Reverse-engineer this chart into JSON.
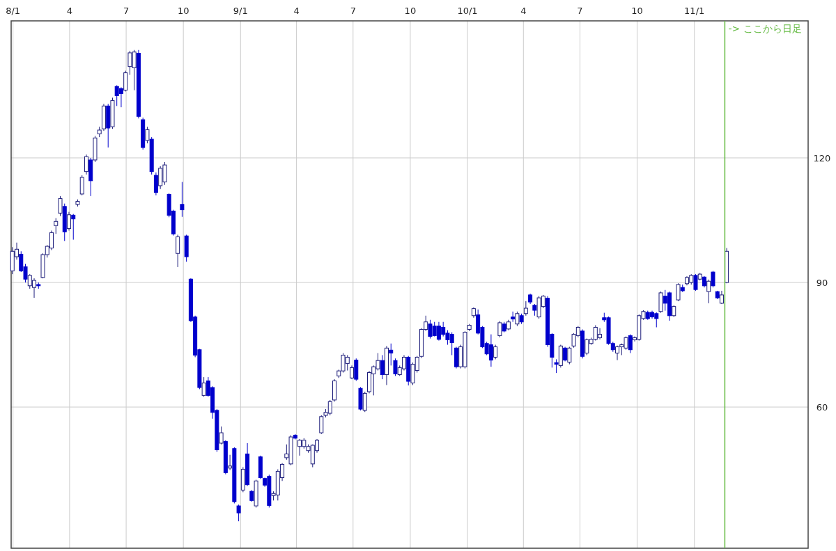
{
  "chart_data": {
    "type": "candlestick",
    "x": [
      "2007-12-31",
      "2008-01-07",
      "2008-01-14",
      "2008-01-21",
      "2008-01-28",
      "2008-02-04",
      "2008-02-11",
      "2008-02-18",
      "2008-02-25",
      "2008-03-03",
      "2008-03-10",
      "2008-03-17",
      "2008-03-24",
      "2008-03-31",
      "2008-04-07",
      "2008-04-14",
      "2008-04-21",
      "2008-04-28",
      "2008-05-05",
      "2008-05-12",
      "2008-05-19",
      "2008-05-26",
      "2008-06-02",
      "2008-06-09",
      "2008-06-16",
      "2008-06-23",
      "2008-06-30",
      "2008-07-07",
      "2008-07-14",
      "2008-07-21",
      "2008-07-28",
      "2008-08-04",
      "2008-08-11",
      "2008-08-18",
      "2008-08-25",
      "2008-09-01",
      "2008-09-08",
      "2008-09-15",
      "2008-09-22",
      "2008-09-29",
      "2008-10-06",
      "2008-10-13",
      "2008-10-20",
      "2008-10-27",
      "2008-11-03",
      "2008-11-10",
      "2008-11-17",
      "2008-11-24",
      "2008-12-01",
      "2008-12-08",
      "2008-12-15",
      "2008-12-22",
      "2008-12-29",
      "2009-01-05",
      "2009-01-12",
      "2009-01-19",
      "2009-01-26",
      "2009-02-02",
      "2009-02-09",
      "2009-02-16",
      "2009-02-23",
      "2009-03-02",
      "2009-03-09",
      "2009-03-16",
      "2009-03-23",
      "2009-03-30",
      "2009-04-06",
      "2009-04-13",
      "2009-04-20",
      "2009-04-27",
      "2009-05-04",
      "2009-05-11",
      "2009-05-18",
      "2009-05-25",
      "2009-06-01",
      "2009-06-08",
      "2009-06-15",
      "2009-06-22",
      "2009-06-29",
      "2009-07-06",
      "2009-07-13",
      "2009-07-20",
      "2009-07-27",
      "2009-08-03",
      "2009-08-10",
      "2009-08-17",
      "2009-08-24",
      "2009-08-31",
      "2009-09-07",
      "2009-09-14",
      "2009-09-21",
      "2009-09-28",
      "2009-10-05",
      "2009-10-12",
      "2009-10-19",
      "2009-10-26",
      "2009-11-02",
      "2009-11-09",
      "2009-11-16",
      "2009-11-23",
      "2009-11-30",
      "2009-12-07",
      "2009-12-14",
      "2009-12-21",
      "2009-12-28",
      "2010-01-04",
      "2010-01-11",
      "2010-01-18",
      "2010-01-25",
      "2010-02-01",
      "2010-02-08",
      "2010-02-15",
      "2010-02-22",
      "2010-03-01",
      "2010-03-08",
      "2010-03-15",
      "2010-03-22",
      "2010-03-29",
      "2010-04-05",
      "2010-04-12",
      "2010-04-19",
      "2010-04-26",
      "2010-05-03",
      "2010-05-10",
      "2010-05-17",
      "2010-05-24",
      "2010-05-31",
      "2010-06-07",
      "2010-06-14",
      "2010-06-21",
      "2010-06-28",
      "2010-07-05",
      "2010-07-12",
      "2010-07-19",
      "2010-07-26",
      "2010-08-02",
      "2010-08-09",
      "2010-08-16",
      "2010-08-23",
      "2010-08-30",
      "2010-09-06",
      "2010-09-13",
      "2010-09-20",
      "2010-09-27",
      "2010-10-04",
      "2010-10-11",
      "2010-10-18",
      "2010-10-25",
      "2010-11-01",
      "2010-11-08",
      "2010-11-15",
      "2010-11-22",
      "2010-11-29",
      "2010-12-06",
      "2010-12-13",
      "2010-12-20",
      "2010-12-27",
      "2011-01-03",
      "2011-01-10",
      "2011-01-17",
      "2011-01-24",
      "2011-01-31",
      "2011-02-07",
      "2011-02-14",
      "2011-02-22"
    ],
    "ohlc": [
      [
        92.8,
        98.5,
        92,
        97.5
      ],
      [
        96.2,
        99.6,
        95.5,
        98
      ],
      [
        96.8,
        97.5,
        92.5,
        92.8
      ],
      [
        93.8,
        94.5,
        90,
        90.8
      ],
      [
        89.2,
        92,
        88.5,
        91.7
      ],
      [
        88.8,
        91,
        86.3,
        90.5
      ],
      [
        89.5,
        90,
        88.5,
        89.2
      ],
      [
        91.2,
        97,
        91,
        96.7
      ],
      [
        96.7,
        99,
        96,
        98.7
      ],
      [
        98.3,
        102.5,
        97.8,
        102
      ],
      [
        103.7,
        105.5,
        101.7,
        104.7
      ],
      [
        106.7,
        110.8,
        106,
        110.2
      ],
      [
        108.3,
        109,
        100,
        102.2
      ],
      [
        103,
        107,
        102.5,
        106.3
      ],
      [
        106.2,
        106.5,
        100.3,
        105.3
      ],
      [
        108.8,
        110,
        108.3,
        109.5
      ],
      [
        111.3,
        115.8,
        111,
        115.3
      ],
      [
        116.7,
        120.8,
        116,
        120.3
      ],
      [
        119.5,
        120,
        110.8,
        114.5
      ],
      [
        119.5,
        125.3,
        119,
        124.8
      ],
      [
        125.8,
        127.5,
        125,
        126.7
      ],
      [
        127,
        133,
        126.5,
        132.5
      ],
      [
        132.5,
        133,
        122.5,
        127.2
      ],
      [
        127.5,
        134.5,
        127,
        133.8
      ],
      [
        137.2,
        137.5,
        132.5,
        135
      ],
      [
        136.7,
        137,
        132.2,
        135.5
      ],
      [
        136.3,
        141,
        136,
        140.5
      ],
      [
        142,
        145.8,
        140,
        145.3
      ],
      [
        141.7,
        146,
        136.3,
        145.5
      ],
      [
        145.2,
        146,
        129.5,
        130
      ],
      [
        129.2,
        129.7,
        122,
        122.5
      ],
      [
        124.2,
        127.5,
        123.5,
        126.8
      ],
      [
        124.5,
        125,
        116,
        116.7
      ],
      [
        115.8,
        116.5,
        111,
        111.7
      ],
      [
        113.3,
        118,
        112.5,
        117.5
      ],
      [
        114.2,
        119,
        113.5,
        118.3
      ],
      [
        111.2,
        111.5,
        105.7,
        106.2
      ],
      [
        107.2,
        107.5,
        101.3,
        101.7
      ],
      [
        97,
        101.5,
        93.7,
        101
      ],
      [
        108.8,
        114.2,
        105.8,
        107.5
      ],
      [
        101.2,
        101.5,
        95,
        96.2
      ],
      [
        90.8,
        91,
        80.5,
        80.8
      ],
      [
        81.7,
        82,
        72,
        72.5
      ],
      [
        73.8,
        74,
        64.3,
        64.7
      ],
      [
        62.8,
        67.2,
        62.5,
        65.8
      ],
      [
        66.3,
        67.2,
        62.5,
        62.8
      ],
      [
        64.7,
        65,
        57.2,
        58.7
      ],
      [
        59.2,
        59.5,
        49.2,
        49.7
      ],
      [
        51.3,
        55.3,
        51,
        53.8
      ],
      [
        51.7,
        52,
        43.8,
        44.2
      ],
      [
        45.3,
        48.5,
        44.8,
        45.8
      ],
      [
        50,
        50.3,
        36.8,
        37.2
      ],
      [
        36.2,
        36.5,
        32.5,
        34.5
      ],
      [
        40,
        45.5,
        39.5,
        45
      ],
      [
        48.7,
        51.3,
        41,
        41.3
      ],
      [
        39.7,
        40,
        37.2,
        37.5
      ],
      [
        36.2,
        42.5,
        35.8,
        42.2
      ],
      [
        48,
        48.3,
        42.7,
        43
      ],
      [
        42.8,
        43,
        40.8,
        41.2
      ],
      [
        43.3,
        43.7,
        35.8,
        36.3
      ],
      [
        38.7,
        39.7,
        37.5,
        39.2
      ],
      [
        38.8,
        45,
        37.5,
        44.5
      ],
      [
        43,
        46.5,
        42.2,
        46.2
      ],
      [
        47.8,
        51,
        47.3,
        48.7
      ],
      [
        46.3,
        53.2,
        46,
        52.8
      ],
      [
        53.2,
        53.5,
        52.2,
        52.5
      ],
      [
        50.5,
        52.3,
        48.3,
        52
      ],
      [
        50.5,
        52.5,
        50,
        52
      ],
      [
        49.5,
        51,
        49,
        50.5
      ],
      [
        46.3,
        51,
        45.5,
        50.8
      ],
      [
        49.5,
        52.3,
        49,
        52
      ],
      [
        53.8,
        58,
        53.5,
        57.7
      ],
      [
        58,
        59.5,
        57.5,
        58.7
      ],
      [
        58.5,
        61.7,
        58,
        61.3
      ],
      [
        61.7,
        66.7,
        61.3,
        66.3
      ],
      [
        67.5,
        69,
        67,
        68.7
      ],
      [
        68.7,
        73,
        68.3,
        72.5
      ],
      [
        70.5,
        72.5,
        68.8,
        72
      ],
      [
        67,
        70,
        66.7,
        69.5
      ],
      [
        71.3,
        71.7,
        66.3,
        66.7
      ],
      [
        64.5,
        64.8,
        59.2,
        59.5
      ],
      [
        59.2,
        63.7,
        58.8,
        63.3
      ],
      [
        63.7,
        68.7,
        63.3,
        68.3
      ],
      [
        68,
        70,
        62.8,
        69.7
      ],
      [
        69.2,
        73,
        68.8,
        71.2
      ],
      [
        71.2,
        72.5,
        66.7,
        67.8
      ],
      [
        67.8,
        74.7,
        65.3,
        74.2
      ],
      [
        73.7,
        75.3,
        70,
        73
      ],
      [
        71.2,
        71.7,
        67.5,
        68
      ],
      [
        67.8,
        70,
        67.5,
        69.5
      ],
      [
        69.2,
        72.5,
        68.8,
        72
      ],
      [
        72,
        72.3,
        65.2,
        66.2
      ],
      [
        65.8,
        70.7,
        65.3,
        70.3
      ],
      [
        68.8,
        72.3,
        68.3,
        72
      ],
      [
        72.2,
        79,
        71.8,
        78.7
      ],
      [
        78.7,
        82,
        78.3,
        80.5
      ],
      [
        80,
        81,
        76.5,
        77
      ],
      [
        79.5,
        80.5,
        77,
        77.2
      ],
      [
        79.5,
        80.5,
        76,
        76.3
      ],
      [
        79.2,
        80.5,
        77,
        77.5
      ],
      [
        77.8,
        78.5,
        75,
        76.2
      ],
      [
        77.5,
        78,
        72.5,
        75.5
      ],
      [
        74.2,
        74.5,
        69.3,
        69.7
      ],
      [
        69.7,
        75,
        69.3,
        74.5
      ],
      [
        69.7,
        78.3,
        69.3,
        78
      ],
      [
        78.7,
        80,
        78.3,
        79.7
      ],
      [
        82,
        84,
        81.5,
        83.7
      ],
      [
        82.2,
        83.5,
        77.5,
        77.8
      ],
      [
        79.2,
        79.5,
        74.2,
        74.5
      ],
      [
        75.3,
        75.7,
        72.5,
        72.8
      ],
      [
        75,
        77.5,
        69.7,
        71.3
      ],
      [
        72,
        75,
        71.5,
        74.5
      ],
      [
        77.2,
        80.7,
        76.8,
        80.3
      ],
      [
        80,
        80.5,
        78,
        78.3
      ],
      [
        78.8,
        81,
        78.5,
        80.5
      ],
      [
        81.7,
        83,
        80.5,
        81.2
      ],
      [
        80,
        83,
        79.5,
        82.5
      ],
      [
        82,
        82.5,
        80,
        80.5
      ],
      [
        82.5,
        85.5,
        82,
        83.8
      ],
      [
        87,
        87.3,
        84.8,
        85.3
      ],
      [
        84.5,
        84.8,
        82,
        83.3
      ],
      [
        81.7,
        86.7,
        81.3,
        86.3
      ],
      [
        84.2,
        87,
        83.8,
        86.7
      ],
      [
        86.2,
        86.7,
        74.5,
        75
      ],
      [
        77.5,
        77.8,
        69.5,
        72
      ],
      [
        70.7,
        71.5,
        68.2,
        70.3
      ],
      [
        70,
        75,
        69.5,
        74.7
      ],
      [
        74.2,
        74.5,
        71,
        71.3
      ],
      [
        70.8,
        74.5,
        70.3,
        74.2
      ],
      [
        74.7,
        77.8,
        74.3,
        77.5
      ],
      [
        77.2,
        79.5,
        76.8,
        79.2
      ],
      [
        78.3,
        78.7,
        71.7,
        72.2
      ],
      [
        73,
        76.5,
        72.5,
        76.2
      ],
      [
        75.3,
        76.7,
        75,
        76.3
      ],
      [
        76.3,
        79.7,
        76,
        79.2
      ],
      [
        76.7,
        79,
        76.3,
        77.5
      ],
      [
        81.5,
        82.7,
        80.5,
        81
      ],
      [
        81.5,
        81.8,
        75,
        75.3
      ],
      [
        75.3,
        75.7,
        73.3,
        73.8
      ],
      [
        73,
        74.8,
        71.3,
        74.5
      ],
      [
        74.5,
        75.3,
        72.5,
        75
      ],
      [
        74.2,
        77,
        73.8,
        76.7
      ],
      [
        77.2,
        77.5,
        73,
        73.8
      ],
      [
        76.2,
        77,
        75.8,
        76.7
      ],
      [
        76.3,
        82.3,
        76,
        82
      ],
      [
        81.3,
        83.3,
        81,
        83
      ],
      [
        82.8,
        83.2,
        81,
        81.3
      ],
      [
        82.8,
        83.2,
        81.3,
        81.7
      ],
      [
        82.5,
        82.8,
        79.2,
        81.3
      ],
      [
        83,
        87.8,
        82.7,
        87.5
      ],
      [
        86.7,
        88.2,
        83.2,
        85
      ],
      [
        87.5,
        87.8,
        80.8,
        82
      ],
      [
        82,
        84.5,
        81.7,
        84.2
      ],
      [
        85.8,
        89.8,
        85.5,
        89.5
      ],
      [
        88.8,
        89.5,
        87.7,
        88
      ],
      [
        89.7,
        91.5,
        89.3,
        91.2
      ],
      [
        90,
        92,
        89.5,
        91.7
      ],
      [
        91.7,
        92,
        88,
        88.3
      ],
      [
        90.8,
        92.3,
        90.5,
        92
      ],
      [
        91.3,
        91.5,
        88.8,
        89.2
      ],
      [
        87.8,
        90.7,
        85,
        90.3
      ],
      [
        92.5,
        92.8,
        88.8,
        89.2
      ],
      [
        87.8,
        88,
        86,
        86.3
      ],
      [
        85,
        88,
        84.8,
        87
      ],
      [
        90,
        98.3,
        89.8,
        97.5
      ]
    ],
    "xlim": [
      "2007-12-29",
      "2011-07-03"
    ],
    "xticks": [
      {
        "value": "2008-01-01",
        "label": "8/1"
      },
      {
        "value": "2008-04-01",
        "label": "4"
      },
      {
        "value": "2008-07-01",
        "label": "7"
      },
      {
        "value": "2008-10-01",
        "label": "10"
      },
      {
        "value": "2009-01-01",
        "label": "9/1"
      },
      {
        "value": "2009-04-01",
        "label": "4"
      },
      {
        "value": "2009-07-01",
        "label": "7"
      },
      {
        "value": "2009-10-01",
        "label": "10"
      },
      {
        "value": "2010-01-01",
        "label": "10/1"
      },
      {
        "value": "2010-04-01",
        "label": "4"
      },
      {
        "value": "2010-07-01",
        "label": "7"
      },
      {
        "value": "2010-10-01",
        "label": "10"
      },
      {
        "value": "2011-01-01",
        "label": "11/1"
      }
    ],
    "ylim": [
      26,
      153
    ],
    "yticks": [
      60,
      90,
      120
    ],
    "grid": true,
    "ref_lines": [
      {
        "axis": "x",
        "value": "2011-02-19",
        "label": "-> ここから日足",
        "color": "#66bb44"
      }
    ]
  }
}
